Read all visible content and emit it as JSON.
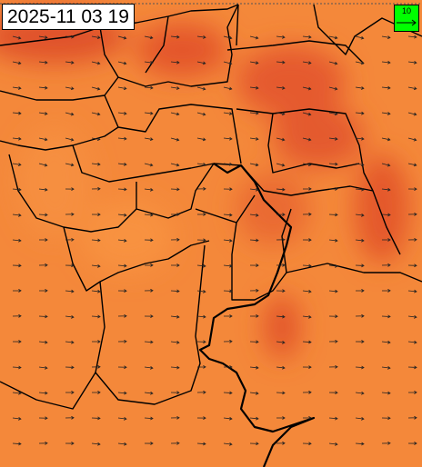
{
  "header": {
    "timestamp": "2025-11 03 19"
  },
  "legend": {
    "label": 10
  }
}
